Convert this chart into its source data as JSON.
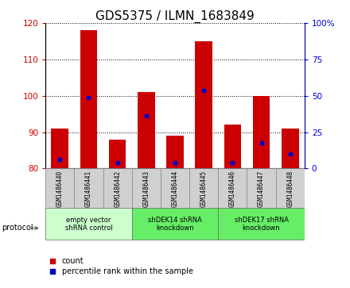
{
  "title": "GDS5375 / ILMN_1683849",
  "samples": [
    "GSM1486440",
    "GSM1486441",
    "GSM1486442",
    "GSM1486443",
    "GSM1486444",
    "GSM1486445",
    "GSM1486446",
    "GSM1486447",
    "GSM1486448"
  ],
  "bar_bottoms": [
    80,
    80,
    80,
    80,
    80,
    80,
    80,
    80,
    80
  ],
  "bar_tops": [
    91,
    118,
    88,
    101,
    89,
    115,
    92,
    100,
    91
  ],
  "percentile_values": [
    82.5,
    99.5,
    81.5,
    94.5,
    81.5,
    101.5,
    81.5,
    87.0,
    84.0
  ],
  "ylim": [
    80,
    120
  ],
  "y2lim": [
    0,
    100
  ],
  "yticks": [
    80,
    90,
    100,
    110,
    120
  ],
  "y2ticks": [
    0,
    25,
    50,
    75,
    100
  ],
  "y2ticklabels": [
    "0",
    "25",
    "50",
    "75",
    "100%"
  ],
  "bar_color": "#cc0000",
  "percentile_color": "#0000cc",
  "bar_width": 0.6,
  "groups": [
    {
      "label": "empty vector\nshRNA control",
      "start": 0,
      "end": 3,
      "color": "#ccffcc"
    },
    {
      "label": "shDEK14 shRNA\nknockdown",
      "start": 3,
      "end": 6,
      "color": "#66ee66"
    },
    {
      "label": "shDEK17 shRNA\nknockdown",
      "start": 6,
      "end": 9,
      "color": "#66ee66"
    }
  ],
  "protocol_label": "protocol",
  "legend_count_label": "count",
  "legend_percentile_label": "percentile rank within the sample",
  "title_fontsize": 11,
  "axis_label_color_left": "#cc0000",
  "axis_label_color_right": "#0000cc"
}
